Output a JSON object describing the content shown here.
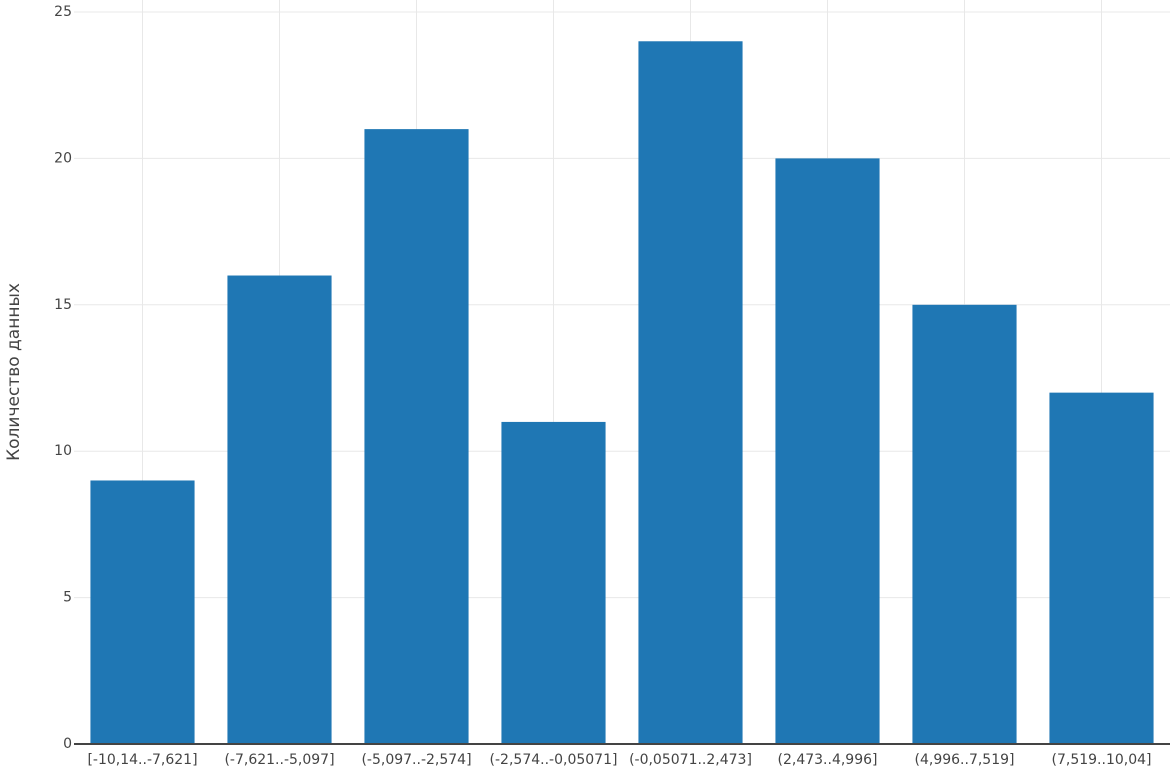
{
  "chart_data": {
    "type": "bar",
    "y_label": "Количество данных",
    "categories": [
      "[-10,14..-7,621]",
      "(-7,621..-5,097]",
      "(-5,097..-2,574]",
      "(-2,574..-0,05071]",
      "(-0,05071..2,473]",
      "(2,473..4,996]",
      "(4,996..7,519]",
      "(7,519..10,04]"
    ],
    "values": [
      9,
      16,
      21,
      11,
      24,
      20,
      15,
      12
    ],
    "color": "#1f77b4",
    "ylim": [
      0,
      25
    ],
    "yticks": [
      0,
      5,
      10,
      15,
      20,
      25
    ],
    "grid": true
  }
}
